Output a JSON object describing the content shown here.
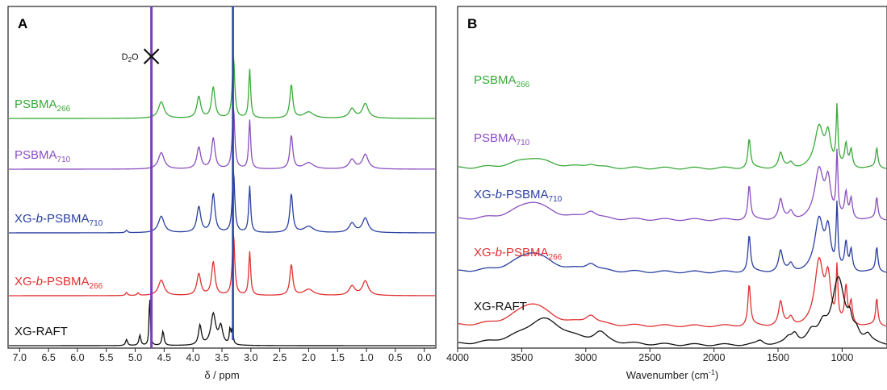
{
  "chart_data": [
    {
      "type": "line",
      "panel_label": "A",
      "xlabel": "δ / ppm",
      "xlim": [
        7.2,
        -0.2
      ],
      "x_reversed": true,
      "xticks": [
        "7.0",
        "6.5",
        "6.0",
        "5.5",
        "5.0",
        "4.5",
        "4.0",
        "3.5",
        "3.0",
        "2.5",
        "2.0",
        "1.5",
        "1.0",
        "0.5",
        "0.0"
      ],
      "annotation": {
        "text": "D",
        "sub": "2",
        "tail": "O",
        "marker": "x-mark",
        "x": 4.72
      },
      "vertical_line": {
        "x": 4.72,
        "color": "#7b3fb8"
      },
      "series": [
        {
          "name": "PSBMA",
          "sub": "266",
          "italic": "",
          "color": "#3aaa3a",
          "peaks": [
            [
              4.55,
              0.32,
              0.06
            ],
            [
              3.9,
              0.42,
              0.04
            ],
            [
              3.65,
              0.6,
              0.035
            ],
            [
              3.3,
              1.2,
              0.025
            ],
            [
              3.02,
              0.95,
              0.02
            ],
            [
              2.3,
              0.65,
              0.03
            ],
            [
              2.0,
              0.12,
              0.1
            ],
            [
              1.25,
              0.18,
              0.06
            ],
            [
              1.02,
              0.28,
              0.06
            ]
          ]
        },
        {
          "name": "PSBMA",
          "sub": "710",
          "italic": "",
          "color": "#8a4fc0",
          "peaks": [
            [
              4.55,
              0.32,
              0.06
            ],
            [
              3.9,
              0.42,
              0.04
            ],
            [
              3.65,
              0.6,
              0.035
            ],
            [
              3.3,
              1.2,
              0.025
            ],
            [
              3.02,
              0.95,
              0.02
            ],
            [
              2.3,
              0.65,
              0.03
            ],
            [
              2.0,
              0.12,
              0.1
            ],
            [
              1.25,
              0.18,
              0.06
            ],
            [
              1.02,
              0.28,
              0.06
            ]
          ]
        },
        {
          "name": "XG-",
          "sub": "710",
          "italic": "b",
          "tail": "-PSBMA",
          "color": "#2a3fa0",
          "peaks": [
            [
              5.15,
              0.05,
              0.02
            ],
            [
              4.55,
              0.32,
              0.06
            ],
            [
              3.9,
              0.5,
              0.04
            ],
            [
              3.65,
              0.75,
              0.035
            ],
            [
              3.3,
              1.2,
              0.025
            ],
            [
              3.02,
              0.9,
              0.02
            ],
            [
              2.3,
              0.75,
              0.03
            ],
            [
              2.0,
              0.12,
              0.1
            ],
            [
              1.25,
              0.18,
              0.06
            ],
            [
              1.02,
              0.28,
              0.06
            ]
          ]
        },
        {
          "name": "XG-",
          "sub": "266",
          "italic": "b",
          "tail": "-PSBMA",
          "color": "#e03030",
          "peaks": [
            [
              5.15,
              0.06,
              0.02
            ],
            [
              4.95,
              0.05,
              0.02
            ],
            [
              4.55,
              0.3,
              0.06
            ],
            [
              3.9,
              0.42,
              0.04
            ],
            [
              3.65,
              0.65,
              0.035
            ],
            [
              3.3,
              1.2,
              0.025
            ],
            [
              3.02,
              0.85,
              0.02
            ],
            [
              2.3,
              0.6,
              0.03
            ],
            [
              2.0,
              0.12,
              0.1
            ],
            [
              1.25,
              0.18,
              0.06
            ],
            [
              1.02,
              0.28,
              0.06
            ]
          ]
        },
        {
          "name": "XG-RAFT",
          "sub": "",
          "italic": "",
          "color": "#111111",
          "peaks": [
            [
              5.15,
              0.12,
              0.02
            ],
            [
              4.92,
              0.2,
              0.02
            ],
            [
              4.75,
              1.0,
              0.012
            ],
            [
              4.52,
              0.28,
              0.02
            ],
            [
              3.88,
              0.38,
              0.03
            ],
            [
              3.65,
              0.6,
              0.05
            ],
            [
              3.52,
              0.35,
              0.04
            ],
            [
              3.36,
              0.3,
              0.015
            ],
            [
              3.32,
              0.32,
              0.015
            ]
          ]
        }
      ]
    },
    {
      "type": "line",
      "panel_label": "B",
      "xlabel": "Wavenumber (cm",
      "xlabel_sup": "-1",
      "xlabel_tail": ")",
      "xlim": [
        4000,
        650
      ],
      "x_reversed": true,
      "xticks": [
        "4000",
        "3500",
        "3000",
        "2500",
        "2000",
        "1500",
        "1000"
      ],
      "series": [
        {
          "name": "PSBMA",
          "sub": "266",
          "italic": "",
          "color": "#3aaa3a",
          "peaks": [
            [
              3420,
              0.22,
              160
            ],
            [
              2960,
              0.08,
              50
            ],
            [
              1725,
              0.6,
              12
            ],
            [
              1480,
              0.3,
              18
            ],
            [
              1400,
              0.1,
              20
            ],
            [
              1180,
              0.82,
              40
            ],
            [
              1110,
              0.65,
              25
            ],
            [
              1040,
              1.2,
              8
            ],
            [
              970,
              0.45,
              12
            ],
            [
              930,
              0.35,
              12
            ],
            [
              730,
              0.4,
              10
            ]
          ]
        },
        {
          "name": "PSBMA",
          "sub": "710",
          "italic": "",
          "color": "#8a4fc0",
          "peaks": [
            [
              3420,
              0.38,
              160
            ],
            [
              2960,
              0.16,
              50
            ],
            [
              1725,
              0.7,
              12
            ],
            [
              1480,
              0.4,
              18
            ],
            [
              1400,
              0.15,
              20
            ],
            [
              1180,
              1.0,
              40
            ],
            [
              1110,
              0.75,
              25
            ],
            [
              1040,
              1.3,
              8
            ],
            [
              970,
              0.5,
              12
            ],
            [
              930,
              0.4,
              12
            ],
            [
              730,
              0.45,
              10
            ]
          ]
        },
        {
          "name": "XG-",
          "sub": "710",
          "italic": "b",
          "tail": "-PSBMA",
          "color": "#2a3fa0",
          "peaks": [
            [
              3420,
              0.42,
              160
            ],
            [
              2960,
              0.16,
              50
            ],
            [
              1725,
              0.75,
              12
            ],
            [
              1480,
              0.42,
              18
            ],
            [
              1400,
              0.15,
              20
            ],
            [
              1180,
              1.05,
              40
            ],
            [
              1110,
              0.8,
              25
            ],
            [
              1040,
              1.3,
              8
            ],
            [
              970,
              0.55,
              12
            ],
            [
              930,
              0.42,
              12
            ],
            [
              730,
              0.5,
              10
            ]
          ]
        },
        {
          "name": "XG-",
          "sub": "266",
          "italic": "b",
          "tail": "-PSBMA",
          "color": "#e03030",
          "peaks": [
            [
              3420,
              0.48,
              160
            ],
            [
              2960,
              0.2,
              50
            ],
            [
              1725,
              0.85,
              12
            ],
            [
              1480,
              0.48,
              18
            ],
            [
              1400,
              0.15,
              20
            ],
            [
              1180,
              1.3,
              40
            ],
            [
              1110,
              0.9,
              25
            ],
            [
              1040,
              1.1,
              8
            ],
            [
              970,
              0.75,
              12
            ],
            [
              930,
              0.45,
              12
            ],
            [
              730,
              0.55,
              10
            ]
          ]
        },
        {
          "name": "XG-RAFT",
          "sub": "",
          "italic": "",
          "color": "#111111",
          "peaks": [
            [
              3330,
              0.55,
              200
            ],
            [
              2890,
              0.2,
              60
            ],
            [
              1640,
              0.08,
              30
            ],
            [
              1420,
              0.1,
              30
            ],
            [
              1370,
              0.2,
              30
            ],
            [
              1240,
              0.2,
              40
            ],
            [
              1150,
              0.3,
              40
            ],
            [
              1030,
              1.35,
              60
            ],
            [
              940,
              0.3,
              20
            ],
            [
              890,
              0.2,
              30
            ],
            [
              800,
              0.15,
              30
            ]
          ]
        }
      ]
    }
  ]
}
